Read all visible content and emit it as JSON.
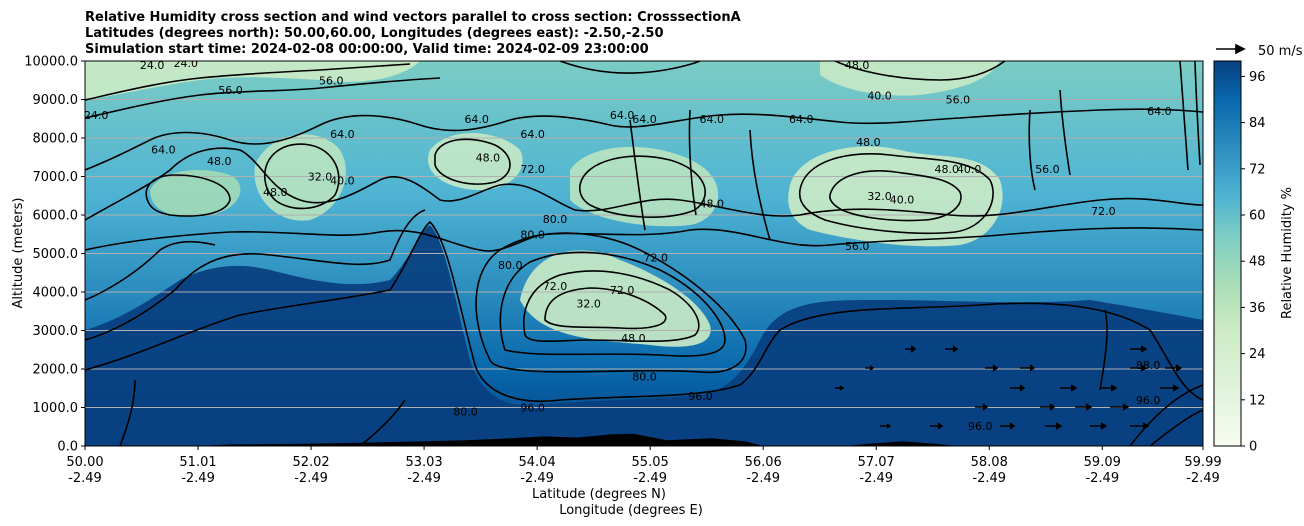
{
  "title_lines": [
    "Relative Humidity cross section and wind vectors parallel to cross section: CrosssectionA",
    "Latitudes (degrees north): 50.00,60.00, Longitudes (degrees east): -2.50,-2.50",
    "Simulation start time: 2024-02-08 00:00:00, Valid time: 2024-02-09 23:00:00"
  ],
  "colors": {
    "low": "#f7fcf0",
    "mid_low": "#a8ddb5",
    "mid": "#4eb3d3",
    "high": "#084081",
    "contour": "#000000",
    "terrain": "#000000",
    "grid": "#b0b0b0"
  },
  "chart_data": {
    "type": "heatmap",
    "subtype": "filled-contour cross section with wind quivers",
    "xlabel_lines": [
      "Latitude (degrees N)",
      "Longitude (degrees E)"
    ],
    "ylabel": "Altitude (meters)",
    "colorbar_label": "Relative Humidity %",
    "quiver_key_label": "50 m/s",
    "x_ticks": [
      {
        "lat": "50.00",
        "lon": "-2.49",
        "value": 50.0
      },
      {
        "lat": "51.01",
        "lon": "-2.49",
        "value": 51.01
      },
      {
        "lat": "52.02",
        "lon": "-2.49",
        "value": 52.02
      },
      {
        "lat": "53.03",
        "lon": "-2.49",
        "value": 53.03
      },
      {
        "lat": "54.04",
        "lon": "-2.49",
        "value": 54.04
      },
      {
        "lat": "55.05",
        "lon": "-2.49",
        "value": 55.05
      },
      {
        "lat": "56.06",
        "lon": "-2.49",
        "value": 56.06
      },
      {
        "lat": "57.07",
        "lon": "-2.49",
        "value": 57.07
      },
      {
        "lat": "58.08",
        "lon": "-2.49",
        "value": 58.08
      },
      {
        "lat": "59.09",
        "lon": "-2.49",
        "value": 59.09
      },
      {
        "lat": "59.99",
        "lon": "-2.49",
        "value": 59.99
      }
    ],
    "xlim": [
      50.0,
      59.99
    ],
    "y_ticks": [
      "0.0",
      "1000.0",
      "2000.0",
      "3000.0",
      "4000.0",
      "5000.0",
      "6000.0",
      "7000.0",
      "8000.0",
      "9000.0",
      "10000.0"
    ],
    "ylim": [
      0,
      10000
    ],
    "grid": "horizontal",
    "colorbar_ticks": [
      "0",
      "12",
      "24",
      "36",
      "48",
      "60",
      "72",
      "84",
      "96"
    ],
    "colorbar_range": [
      0,
      100
    ],
    "contour_levels": [
      8,
      16,
      24,
      32,
      40,
      48,
      56,
      64,
      72,
      80,
      88,
      96
    ],
    "contour_labels": [
      {
        "text": "24.0",
        "x": 50.1,
        "y": 8600
      },
      {
        "text": "24.0",
        "x": 50.6,
        "y": 9900
      },
      {
        "text": "24.0",
        "x": 50.9,
        "y": 9950
      },
      {
        "text": "56.0",
        "x": 51.3,
        "y": 9250
      },
      {
        "text": "56.0",
        "x": 52.2,
        "y": 9500
      },
      {
        "text": "64.0",
        "x": 50.7,
        "y": 7700
      },
      {
        "text": "48.0",
        "x": 51.2,
        "y": 7400
      },
      {
        "text": "64.0",
        "x": 52.3,
        "y": 8100
      },
      {
        "text": "32.0",
        "x": 52.1,
        "y": 7000
      },
      {
        "text": "40.0",
        "x": 52.3,
        "y": 6900
      },
      {
        "text": "48.0",
        "x": 51.7,
        "y": 6600
      },
      {
        "text": "64.0",
        "x": 53.5,
        "y": 8500
      },
      {
        "text": "64.0",
        "x": 54.0,
        "y": 8100
      },
      {
        "text": "48.0",
        "x": 53.6,
        "y": 7500
      },
      {
        "text": "72.0",
        "x": 54.0,
        "y": 7200
      },
      {
        "text": "80.0",
        "x": 54.0,
        "y": 5500
      },
      {
        "text": "80.0",
        "x": 54.2,
        "y": 5900
      },
      {
        "text": "80.0",
        "x": 53.8,
        "y": 4700
      },
      {
        "text": "32.0",
        "x": 54.5,
        "y": 3700
      },
      {
        "text": "48.0",
        "x": 54.9,
        "y": 2800
      },
      {
        "text": "72.0",
        "x": 54.8,
        "y": 4050
      },
      {
        "text": "72.0",
        "x": 54.2,
        "y": 4150
      },
      {
        "text": "80.0",
        "x": 55.0,
        "y": 1800
      },
      {
        "text": "80.0",
        "x": 53.4,
        "y": 900
      },
      {
        "text": "96.0",
        "x": 54.0,
        "y": 1000
      },
      {
        "text": "96.0",
        "x": 55.5,
        "y": 1300
      },
      {
        "text": "64.0",
        "x": 54.8,
        "y": 8600
      },
      {
        "text": "64.0",
        "x": 55.0,
        "y": 8500
      },
      {
        "text": "64.0",
        "x": 55.6,
        "y": 8500
      },
      {
        "text": "64.0",
        "x": 56.4,
        "y": 8500
      },
      {
        "text": "72.0",
        "x": 55.1,
        "y": 4900
      },
      {
        "text": "48.0",
        "x": 55.6,
        "y": 6300
      },
      {
        "text": "56.0",
        "x": 56.9,
        "y": 5200
      },
      {
        "text": "32.0",
        "x": 57.1,
        "y": 6500
      },
      {
        "text": "40.0",
        "x": 57.3,
        "y": 6400
      },
      {
        "text": "48.0",
        "x": 57.7,
        "y": 7200
      },
      {
        "text": "48.0",
        "x": 57.0,
        "y": 7900
      },
      {
        "text": "40.0",
        "x": 57.1,
        "y": 9100
      },
      {
        "text": "48.0",
        "x": 56.9,
        "y": 9900
      },
      {
        "text": "56.0",
        "x": 57.8,
        "y": 9000
      },
      {
        "text": "40.0",
        "x": 57.9,
        "y": 7200
      },
      {
        "text": "72.0",
        "x": 59.1,
        "y": 6100
      },
      {
        "text": "56.0",
        "x": 58.6,
        "y": 7200
      },
      {
        "text": "64.0",
        "x": 59.6,
        "y": 8700
      },
      {
        "text": "88.0",
        "x": 59.5,
        "y": 2100
      },
      {
        "text": "96.0",
        "x": 58.0,
        "y": 520
      },
      {
        "text": "96.0",
        "x": 59.5,
        "y": 1200
      }
    ],
    "terrain_points": [
      [
        50.0,
        0
      ],
      [
        51.0,
        0
      ],
      [
        51.3,
        40
      ],
      [
        52.0,
        60
      ],
      [
        52.4,
        80
      ],
      [
        53.0,
        120
      ],
      [
        53.4,
        150
      ],
      [
        53.8,
        200
      ],
      [
        54.1,
        250
      ],
      [
        54.4,
        220
      ],
      [
        54.7,
        300
      ],
      [
        54.9,
        320
      ],
      [
        55.2,
        150
      ],
      [
        55.6,
        200
      ],
      [
        55.9,
        120
      ],
      [
        56.06,
        0
      ],
      [
        56.8,
        0
      ],
      [
        57.0,
        60
      ],
      [
        57.3,
        120
      ],
      [
        57.6,
        60
      ],
      [
        57.8,
        0
      ],
      [
        59.99,
        0
      ]
    ]
  }
}
